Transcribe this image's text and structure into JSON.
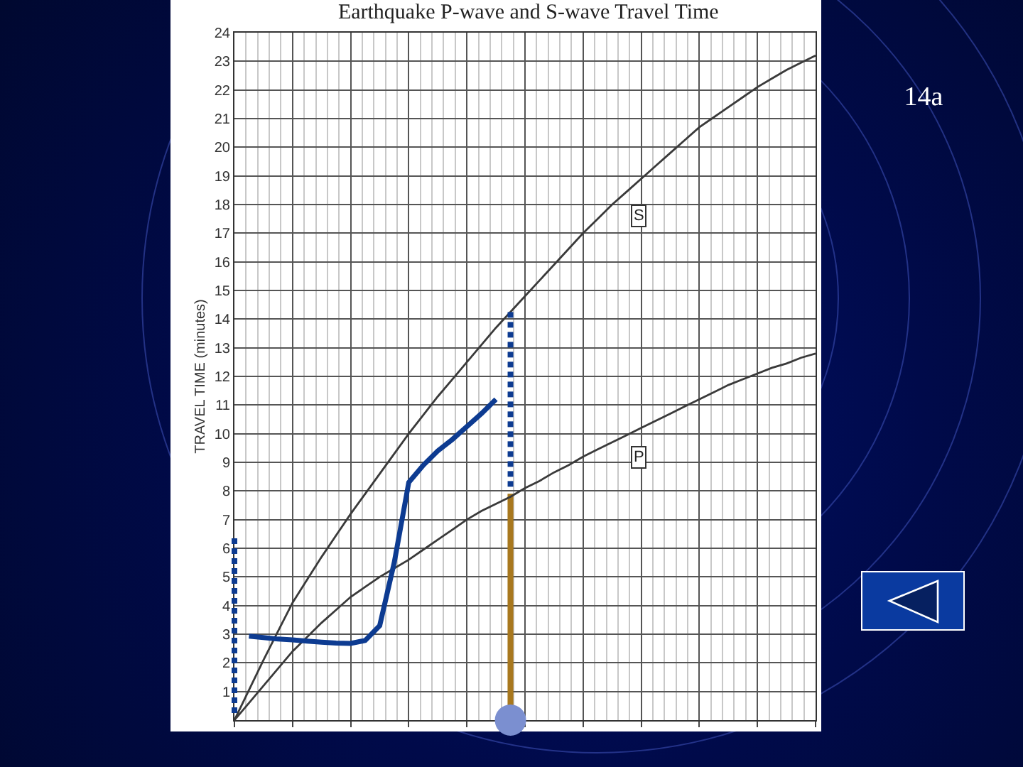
{
  "chart_data": {
    "type": "line",
    "title": "Earthquake P-wave and S-wave Travel Time",
    "ylabel": "TRAVEL TIME (minutes)",
    "categories": [
      null,
      null,
      null,
      null,
      null,
      null,
      null,
      null,
      null,
      null,
      null,
      null,
      null,
      null,
      null,
      null,
      null,
      null,
      null,
      null,
      null,
      null,
      null,
      null,
      null,
      null,
      null,
      null,
      null,
      null,
      null,
      null,
      null,
      null,
      null,
      null,
      null,
      null,
      null,
      null,
      null
    ],
    "ylim": [
      0,
      24
    ],
    "yticks": [
      {
        "value": 0,
        "label": null
      },
      1,
      2,
      3,
      4,
      5,
      6,
      7,
      8,
      9,
      10,
      11,
      12,
      13,
      14,
      15,
      16,
      17,
      18,
      19,
      20,
      21,
      22,
      23,
      24
    ],
    "tick_labels": "y",
    "grid": true,
    "legend": false,
    "marker": "none",
    "series": [
      {
        "name": "S",
        "color": "#3a3a3a",
        "values": [
          0,
          1.05,
          2.1,
          3.1,
          4.1,
          4.9,
          5.7,
          6.45,
          7.2,
          7.9,
          8.6,
          9.3,
          10.0,
          10.65,
          11.3,
          11.9,
          12.5,
          13.1,
          13.7,
          14.25,
          14.8,
          15.35,
          15.9,
          16.45,
          17.0,
          17.5,
          18.0,
          18.45,
          18.9,
          19.35,
          19.8,
          20.25,
          20.7,
          21.05,
          21.4,
          21.75,
          22.1,
          22.4,
          22.7,
          22.95,
          23.2
        ]
      },
      {
        "name": "P",
        "color": "#3a3a3a",
        "values": [
          0,
          0.6,
          1.2,
          1.8,
          2.4,
          2.9,
          3.4,
          3.85,
          4.3,
          4.65,
          5.0,
          5.3,
          5.6,
          5.95,
          6.3,
          6.65,
          7.0,
          7.3,
          7.55,
          7.8,
          8.1,
          8.35,
          8.65,
          8.9,
          9.2,
          9.45,
          9.7,
          9.95,
          10.2,
          10.45,
          10.7,
          10.95,
          11.2,
          11.45,
          11.7,
          11.9,
          12.1,
          12.3,
          12.45,
          12.65,
          12.8
        ]
      },
      {
        "color": "#0d3b91",
        "values": [
          null,
          2.93,
          2.88,
          2.83,
          2.8,
          2.76,
          2.72,
          2.69,
          2.68,
          2.78,
          3.3,
          5.5,
          8.3,
          8.9,
          9.4,
          9.8,
          10.25,
          10.7,
          11.2,
          null,
          null,
          null,
          null,
          null,
          null,
          null,
          null,
          null,
          null,
          null,
          null,
          null,
          null,
          null,
          null,
          null,
          null,
          null,
          null,
          null,
          null
        ]
      },
      {
        "type": "bar",
        "color": "#a8781e",
        "values": [
          null,
          null,
          null,
          null,
          null,
          null,
          null,
          null,
          null,
          null,
          null,
          null,
          null,
          null,
          null,
          null,
          null,
          null,
          null,
          7.9,
          null,
          null,
          null,
          null,
          null,
          null,
          null,
          null,
          null,
          null,
          null,
          null,
          null,
          null,
          null,
          null,
          null,
          null,
          null,
          null,
          null
        ]
      }
    ],
    "annotations": [
      "14a"
    ]
  }
}
